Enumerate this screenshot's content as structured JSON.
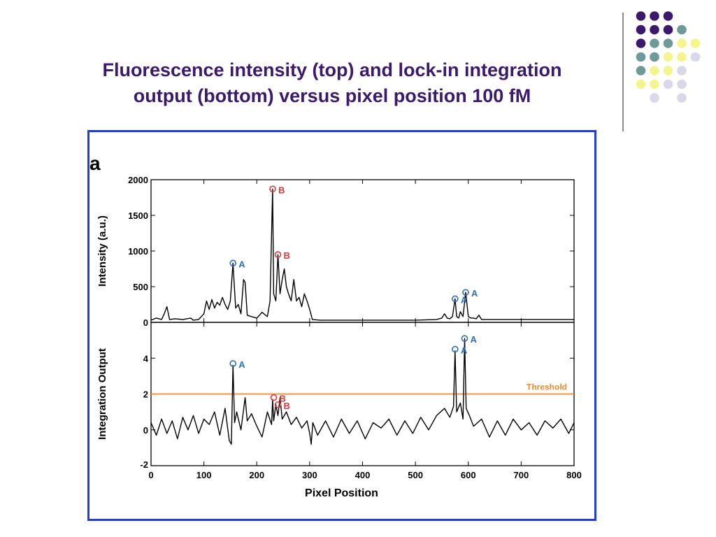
{
  "slide": {
    "title_line1": "Fluorescence intensity (top) and lock-in integration",
    "title_line2": "output (bottom) versus pixel position 100 fM",
    "colors": {
      "title": "#3b1a6b",
      "frame": "#1f3fd0",
      "dot_purple": "#3b1a6b",
      "dot_teal": "#6f9a98",
      "dot_yellow": "#f5f58f",
      "dot_lavender": "#d8d8e8"
    }
  },
  "chart_data": [
    {
      "type": "line",
      "panel_label": "a",
      "ylabel": "Intensity (a.u.)",
      "xlim": [
        0,
        800
      ],
      "ylim": [
        0,
        2000
      ],
      "xticks": [
        0,
        100,
        200,
        300,
        400,
        500,
        600,
        700,
        800
      ],
      "yticks": [
        0,
        500,
        1000,
        1500,
        2000
      ],
      "series": [
        {
          "color": "#000000",
          "x": [
            0,
            10,
            20,
            25,
            30,
            35,
            45,
            60,
            75,
            80,
            90,
            100,
            105,
            110,
            115,
            120,
            125,
            130,
            135,
            140,
            145,
            150,
            155,
            160,
            165,
            170,
            175,
            178,
            182,
            190,
            200,
            210,
            220,
            225,
            230,
            232,
            236,
            240,
            244,
            248,
            252,
            256,
            260,
            265,
            270,
            275,
            280,
            285,
            290,
            295,
            300,
            305,
            320,
            350,
            400,
            450,
            500,
            540,
            550,
            555,
            560,
            565,
            570,
            575,
            578,
            582,
            585,
            590,
            595,
            600,
            605,
            610,
            615,
            620,
            625,
            640,
            680,
            720,
            760,
            800
          ],
          "y": [
            30,
            60,
            40,
            120,
            220,
            40,
            50,
            40,
            60,
            30,
            40,
            120,
            300,
            180,
            320,
            200,
            280,
            240,
            350,
            250,
            180,
            300,
            830,
            200,
            250,
            120,
            600,
            560,
            100,
            80,
            60,
            140,
            80,
            300,
            1870,
            400,
            300,
            950,
            400,
            600,
            750,
            500,
            400,
            300,
            600,
            300,
            350,
            220,
            400,
            300,
            180,
            40,
            30,
            30,
            30,
            30,
            30,
            40,
            60,
            120,
            60,
            50,
            80,
            330,
            80,
            60,
            150,
            80,
            420,
            80,
            60,
            60,
            50,
            100,
            40,
            40,
            40,
            40,
            40,
            40
          ]
        }
      ],
      "markers": [
        {
          "x": 155,
          "y": 830,
          "label": "A",
          "color": "#2f6fb5"
        },
        {
          "x": 230,
          "y": 1870,
          "label": "B",
          "color": "#d63a3a"
        },
        {
          "x": 240,
          "y": 950,
          "label": "B",
          "color": "#d63a3a"
        },
        {
          "x": 575,
          "y": 330,
          "label": "A",
          "color": "#2f6fb5"
        },
        {
          "x": 595,
          "y": 420,
          "label": "A",
          "color": "#2f6fb5"
        }
      ]
    },
    {
      "type": "line",
      "xlabel": "Pixel Position",
      "ylabel": "Integration Output",
      "xlim": [
        0,
        800
      ],
      "ylim": [
        -2,
        6
      ],
      "xticks": [
        0,
        100,
        200,
        300,
        400,
        500,
        600,
        700,
        800
      ],
      "yticks": [
        -2,
        0,
        2,
        4
      ],
      "threshold": {
        "y": 2,
        "label": "Threshold",
        "color": "#f0892e"
      },
      "series": [
        {
          "color": "#000000",
          "x": [
            0,
            10,
            20,
            30,
            40,
            50,
            60,
            70,
            80,
            90,
            100,
            110,
            120,
            130,
            140,
            148,
            152,
            155,
            158,
            162,
            170,
            178,
            182,
            190,
            200,
            210,
            220,
            228,
            230,
            232,
            236,
            240,
            244,
            248,
            256,
            265,
            275,
            285,
            295,
            300,
            303,
            306,
            315,
            330,
            345,
            360,
            375,
            390,
            405,
            420,
            435,
            450,
            465,
            480,
            495,
            510,
            525,
            540,
            555,
            565,
            572,
            575,
            578,
            585,
            590,
            593,
            596,
            602,
            610,
            625,
            640,
            655,
            670,
            685,
            700,
            715,
            730,
            745,
            760,
            775,
            790,
            800
          ],
          "y": [
            0.4,
            -0.3,
            0.6,
            -0.2,
            0.5,
            -0.5,
            0.7,
            0.0,
            0.8,
            -0.2,
            0.6,
            0.3,
            1.0,
            -0.3,
            1.2,
            -0.6,
            -0.8,
            3.6,
            0.4,
            1.0,
            0.0,
            1.8,
            0.5,
            0.9,
            0.2,
            -0.4,
            1.0,
            0.3,
            1.7,
            0.5,
            1.4,
            0.8,
            1.8,
            0.6,
            1.0,
            0.3,
            0.7,
            0.1,
            0.5,
            -0.2,
            -0.8,
            0.4,
            -0.3,
            0.5,
            -0.4,
            0.6,
            -0.2,
            0.5,
            -0.5,
            0.4,
            0.1,
            0.6,
            -0.3,
            0.5,
            -0.2,
            0.7,
            0.0,
            0.8,
            1.2,
            0.7,
            1.3,
            4.4,
            1.0,
            1.5,
            0.6,
            5.1,
            1.2,
            0.8,
            0.2,
            0.6,
            -0.4,
            0.5,
            -0.3,
            0.6,
            0.0,
            0.4,
            -0.3,
            0.5,
            0.1,
            0.6,
            -0.2,
            0.4
          ]
        }
      ],
      "markers": [
        {
          "x": 155,
          "y": 3.7,
          "label": "A",
          "color": "#2f6fb5"
        },
        {
          "x": 232,
          "y": 1.8,
          "label": "B",
          "color": "#d63a3a"
        },
        {
          "x": 240,
          "y": 1.4,
          "label": "B",
          "color": "#d63a3a"
        },
        {
          "x": 575,
          "y": 4.5,
          "label": "A",
          "color": "#2f6fb5"
        },
        {
          "x": 593,
          "y": 5.1,
          "label": "A",
          "color": "#2f6fb5"
        }
      ]
    }
  ]
}
